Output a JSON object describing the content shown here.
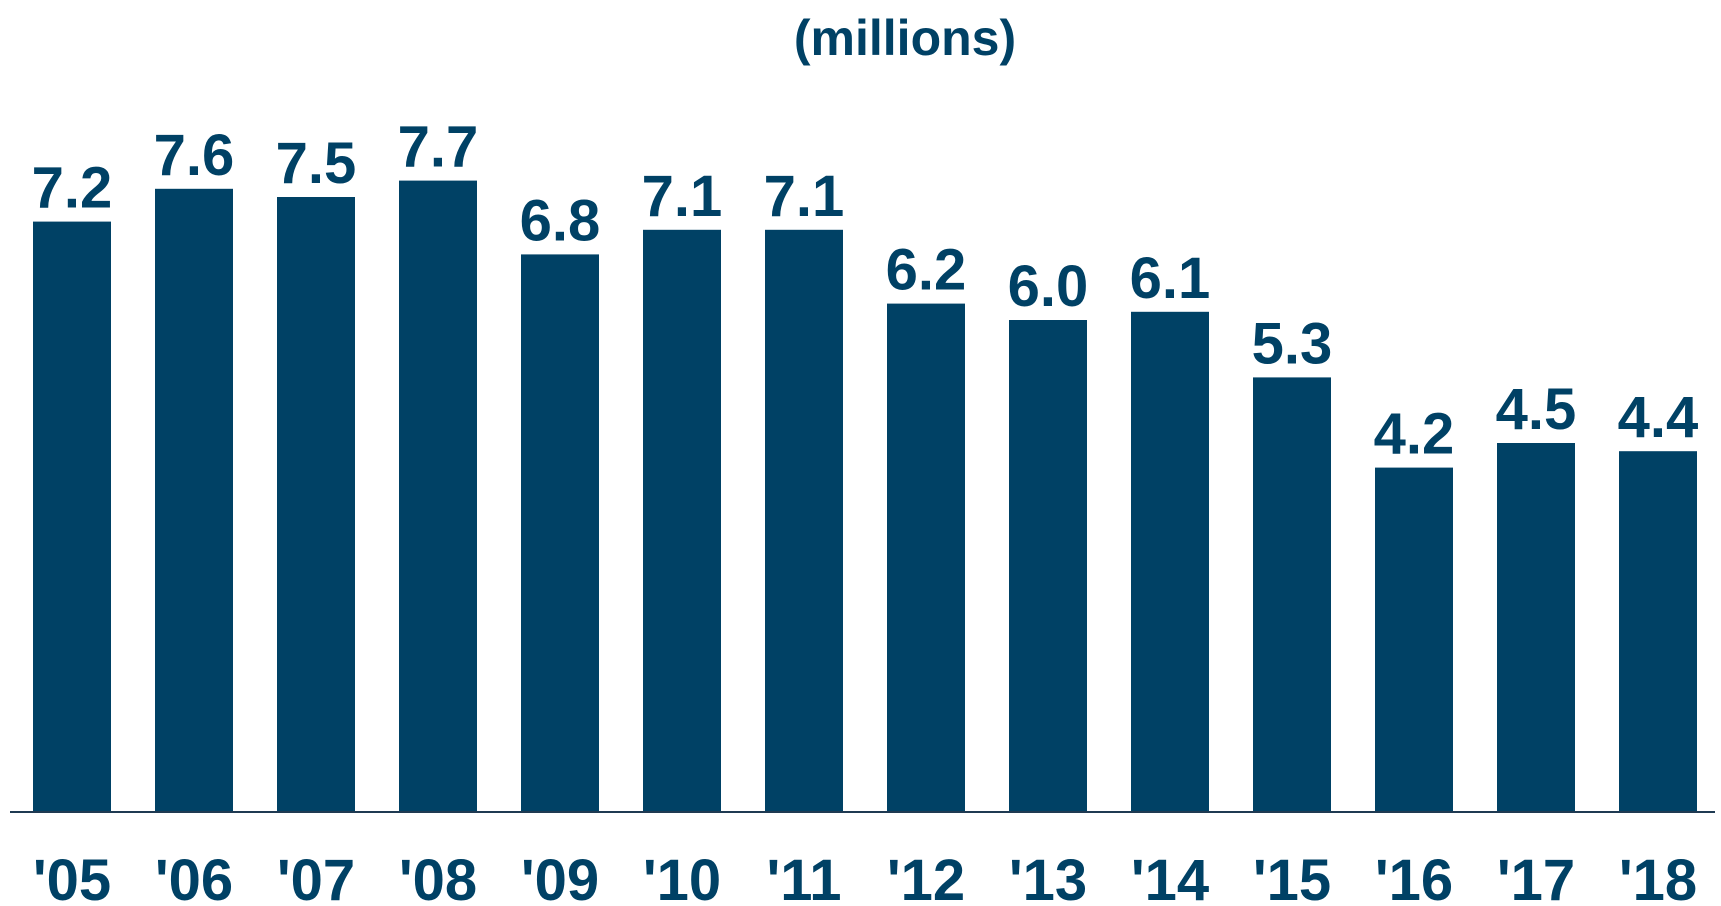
{
  "chart_data": {
    "type": "bar",
    "subtitle": "(millions)",
    "categories": [
      "'05",
      "'06",
      "'07",
      "'08",
      "'09",
      "'10",
      "'11",
      "'12",
      "'13",
      "'14",
      "'15",
      "'16",
      "'17",
      "'18"
    ],
    "values": [
      7.2,
      7.6,
      7.5,
      7.7,
      6.8,
      7.1,
      7.1,
      6.2,
      6.0,
      6.1,
      5.3,
      4.2,
      4.5,
      4.4
    ],
    "value_labels": [
      "7.2",
      "7.6",
      "7.5",
      "7.7",
      "6.8",
      "7.1",
      "7.1",
      "6.2",
      "6.0",
      "6.1",
      "5.3",
      "4.2",
      "4.5",
      "4.4"
    ],
    "ylim": [
      0,
      8
    ],
    "bar_color": "#004165",
    "text_color": "#004165",
    "grid": false,
    "legend": "none"
  }
}
